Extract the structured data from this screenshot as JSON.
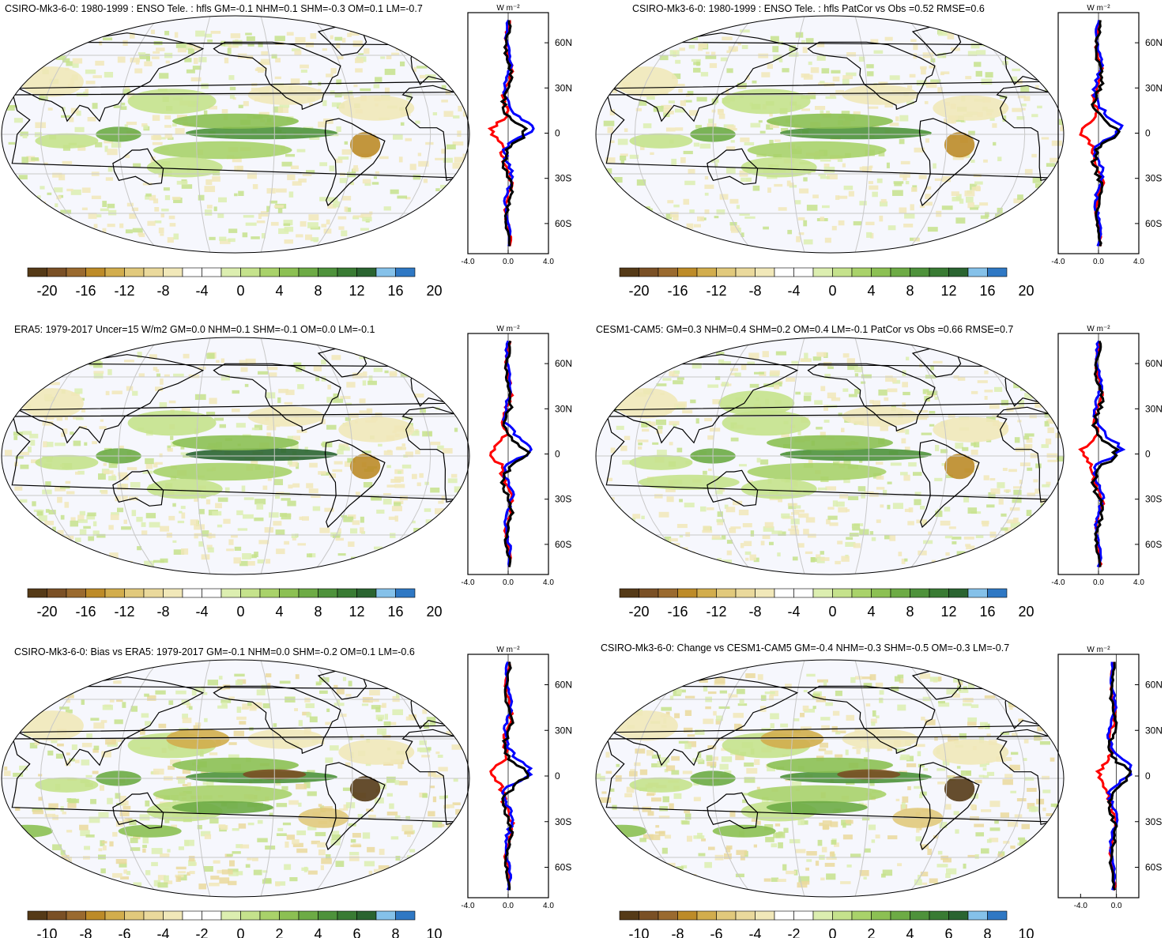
{
  "colors": {
    "palette": [
      "#553a17",
      "#7a5025",
      "#9a6a2f",
      "#bd8b28",
      "#d2ad4d",
      "#e1c97c",
      "#ead99c",
      "#f1e8b9",
      "#ffffff",
      "#ffffff",
      "#dceeb0",
      "#c5e28c",
      "#a9d26a",
      "#8cc053",
      "#6dab45",
      "#4e923b",
      "#397b33",
      "#2a6430",
      "#85c1e9",
      "#2f78c4"
    ],
    "model": "#ff0000",
    "obs": "#0000ff",
    "diff": "#000000",
    "land": "#000000",
    "grid": "#c8c8c8",
    "ocean_bg": "#f6f7fd"
  },
  "icons": [
    "map-panel",
    "zonal-profile-plot",
    "colorbar"
  ],
  "panels": [
    {
      "title": "CSIRO-Mk3-6-0: 1980-1999 : ENSO Tele. : hfls GM=-0.1 NHM=0.1 SHM=-0.3 OM=0.1 LM=-0.7",
      "colorbar_labels": [
        "-20",
        "-16",
        "-12",
        "-8",
        "-4",
        "0",
        "4",
        "8",
        "12",
        "16",
        "20"
      ],
      "profile": {
        "unit": "W m⁻²",
        "lat_labels": [
          "60N",
          "30N",
          "0",
          "30S",
          "60S"
        ],
        "x_ticks": [
          "-4.0",
          "0.0",
          "4.0"
        ],
        "xlim": [
          -4,
          4
        ],
        "ylim": [
          -80,
          80
        ]
      }
    },
    {
      "title": "CSIRO-Mk3-6-0: 1980-1999 : ENSO Tele. : hfls PatCor vs Obs =0.52 RMSE=0.6",
      "colorbar_labels": [
        "-20",
        "-16",
        "-12",
        "-8",
        "-4",
        "0",
        "4",
        "8",
        "12",
        "16",
        "20"
      ],
      "profile": {
        "unit": "W m⁻²",
        "lat_labels": [
          "60N",
          "30N",
          "0",
          "30S",
          "60S"
        ],
        "x_ticks": [
          "-4.0",
          "0.0",
          "4.0"
        ],
        "xlim": [
          -4,
          4
        ],
        "ylim": [
          -80,
          80
        ]
      }
    },
    {
      "title": "ERA5: 1979-2017 Uncer=15 W/m2 GM=0.0 NHM=0.1 SHM=-0.1 OM=0.0 LM=-0.1",
      "colorbar_labels": [
        "-20",
        "-16",
        "-12",
        "-8",
        "-4",
        "0",
        "4",
        "8",
        "12",
        "16",
        "20"
      ],
      "profile": {
        "unit": "W m⁻²",
        "lat_labels": [
          "60N",
          "30N",
          "0",
          "30S",
          "60S"
        ],
        "x_ticks": [
          "-4.0",
          "0.0",
          "4.0"
        ],
        "xlim": [
          -4,
          4
        ],
        "ylim": [
          -80,
          80
        ]
      }
    },
    {
      "title": "CESM1-CAM5: GM=0.3 NHM=0.4 SHM=0.2 OM=0.4 LM=-0.1 PatCor vs Obs =0.66 RMSE=0.7",
      "colorbar_labels": [
        "-20",
        "-16",
        "-12",
        "-8",
        "-4",
        "0",
        "4",
        "8",
        "12",
        "16",
        "20"
      ],
      "profile": {
        "unit": "W m⁻²",
        "lat_labels": [
          "60N",
          "30N",
          "0",
          "30S",
          "60S"
        ],
        "x_ticks": [
          "-4.0",
          "0.0",
          "4.0"
        ],
        "xlim": [
          -4,
          4
        ],
        "ylim": [
          -80,
          80
        ]
      }
    },
    {
      "title": "CSIRO-Mk3-6-0: Bias vs ERA5: 1979-2017 GM=-0.1 NHM=0.0 SHM=-0.2 OM=0.1 LM=-0.6",
      "colorbar_labels": [
        "-10",
        "-8",
        "-6",
        "-4",
        "-2",
        "0",
        "2",
        "4",
        "6",
        "8",
        "10"
      ],
      "profile": {
        "unit": "W m⁻²",
        "lat_labels": [
          "60N",
          "30N",
          "0",
          "30S",
          "60S"
        ],
        "x_ticks": [
          "-4.0",
          "0.0",
          "4.0"
        ],
        "xlim": [
          -4,
          4
        ],
        "ylim": [
          -80,
          80
        ]
      }
    },
    {
      "title": "CSIRO-Mk3-6-0: Change vs CESM1-CAM5 GM=-0.4 NHM=-0.3 SHM=-0.5 OM=-0.3 LM=-0.7",
      "colorbar_labels": [
        "-10",
        "-8",
        "-6",
        "-4",
        "-2",
        "0",
        "2",
        "4",
        "6",
        "8",
        "10"
      ],
      "profile": {
        "unit": "W m⁻²",
        "lat_labels": [
          "60N",
          "30N",
          "0",
          "30S",
          "60S"
        ],
        "x_ticks": [
          "-4.0",
          "0.0"
        ],
        "xlim": [
          -6.5,
          2.5
        ],
        "ylim": [
          -80,
          80
        ]
      }
    }
  ]
}
